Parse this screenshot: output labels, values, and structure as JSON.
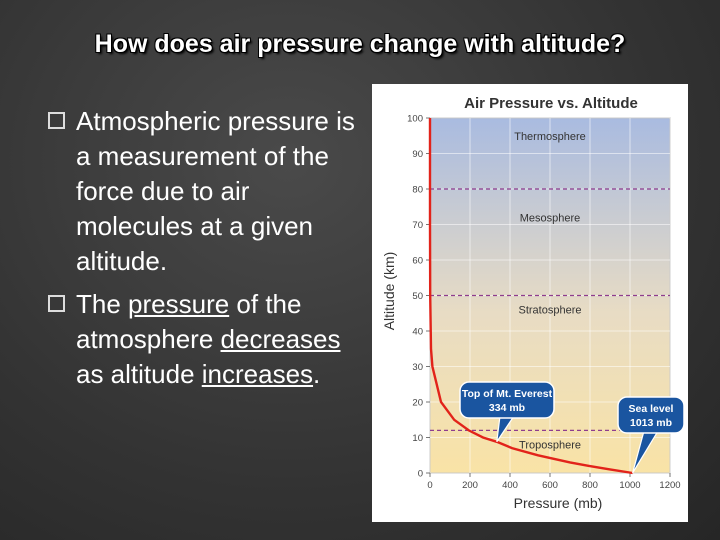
{
  "slide": {
    "title": "How does air pressure change with altitude?",
    "bullets": [
      {
        "text": "Atmospheric pressure is a measurement of the force due to air molecules at a given altitude."
      },
      {
        "prefix": "The ",
        "u1": "pressure",
        "mid1": " of the atmosphere ",
        "u2": "decreases",
        "mid2": " as altitude ",
        "u3": "increases",
        "suffix": "."
      }
    ]
  },
  "chart_data": {
    "type": "line",
    "title": "Air Pressure vs. Altitude",
    "xlabel": "Pressure (mb)",
    "ylabel": "Altitude (km)",
    "xlim": [
      0,
      1200
    ],
    "ylim": [
      0,
      100
    ],
    "x_ticks": [
      0,
      200,
      400,
      600,
      800,
      1000,
      1200
    ],
    "y_ticks": [
      0,
      10,
      20,
      30,
      40,
      50,
      60,
      70,
      80,
      90,
      100
    ],
    "series": [
      {
        "color": "#e2231a",
        "x": [
          1013,
          900,
          795,
          700,
          540,
          410,
          334,
          265,
          194,
          121,
          55,
          12,
          5,
          1,
          0.3,
          0.1,
          0.02,
          0.01
        ],
        "y": [
          0,
          1,
          2,
          3,
          5,
          7,
          8.8,
          10,
          12,
          15,
          20,
          30,
          35,
          50,
          60,
          70,
          85,
          100
        ]
      }
    ],
    "layer_boundaries": [
      12,
      50,
      80
    ],
    "layers": [
      {
        "name": "Thermosphere",
        "y": 95
      },
      {
        "name": "Mesosphere",
        "y": 72
      },
      {
        "name": "Stratosphere",
        "y": 46
      },
      {
        "name": "Troposphere",
        "y": 8
      }
    ],
    "annotations": [
      {
        "line1": "Top of Mt. Everest",
        "line2": "334 mb",
        "x": 334,
        "y": 8.8
      },
      {
        "line1": "Sea level",
        "line2": "1013 mb",
        "x": 1013,
        "y": 0
      }
    ],
    "colors": {
      "sky_top": "#a9bbe0",
      "sky_bottom": "#f9e3a6",
      "boundary": "#8e3d8e",
      "grid": "#ffffff",
      "callout_fill": "#1a55a0"
    },
    "grid": true
  }
}
